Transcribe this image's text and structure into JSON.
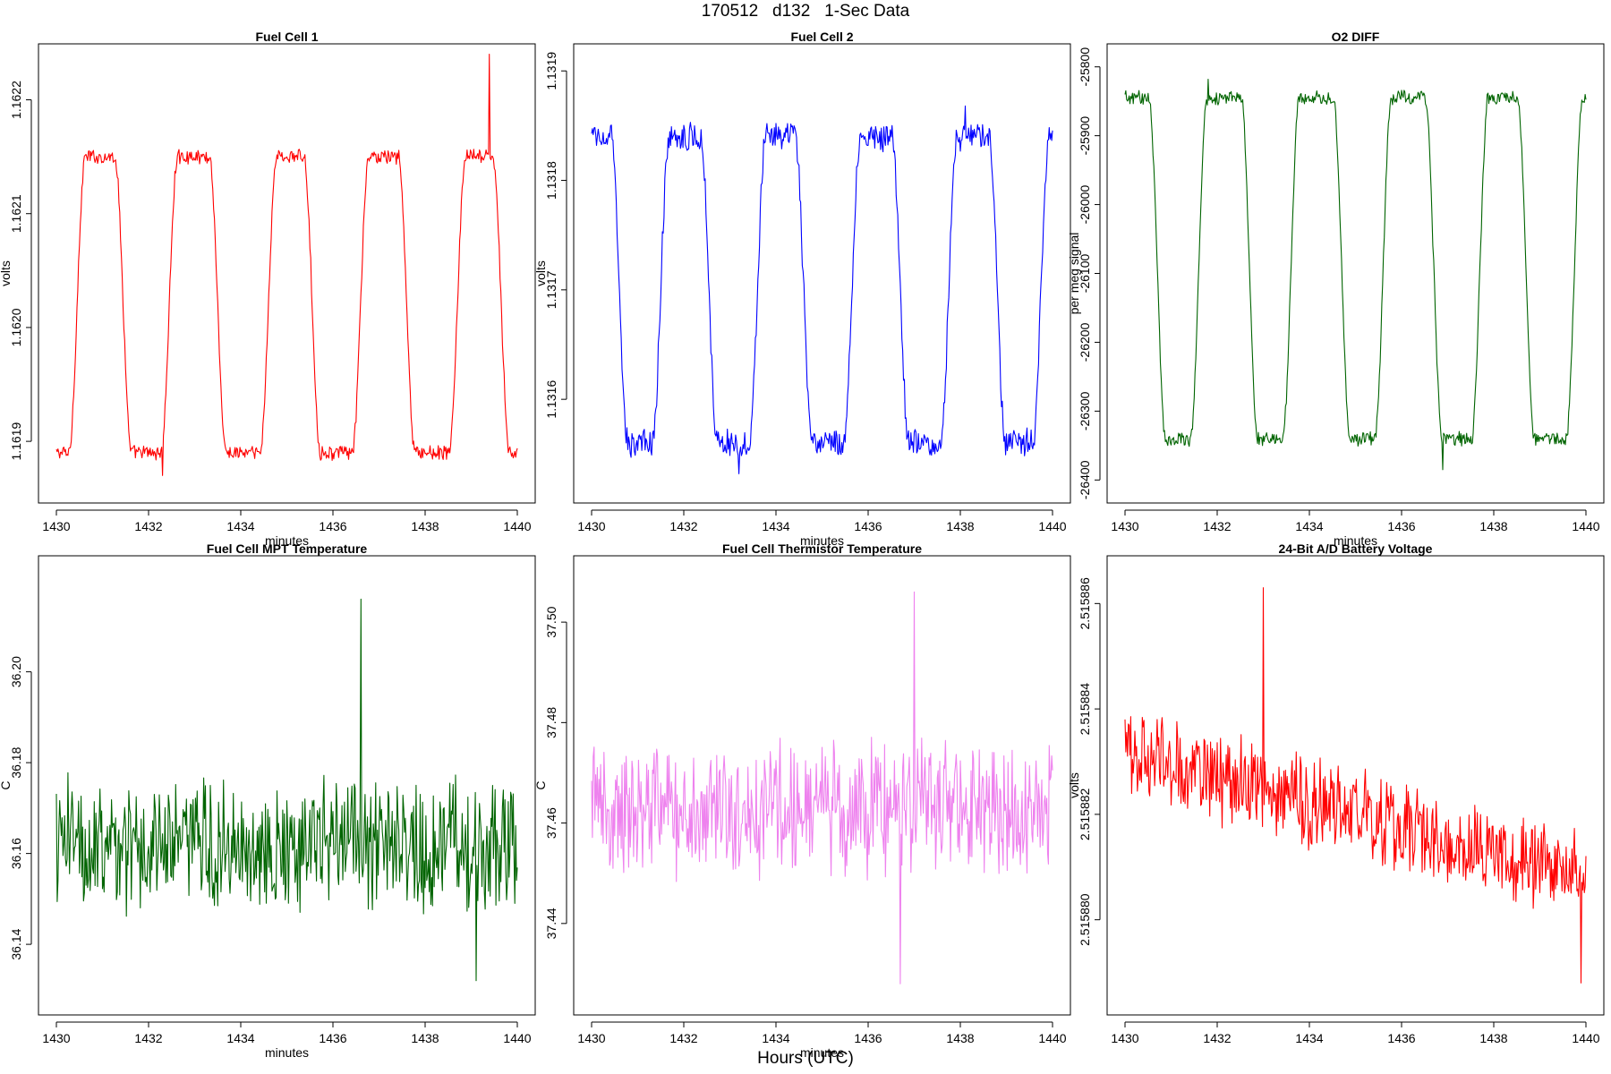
{
  "figure": {
    "title": "170512   d132   1-Sec Data",
    "footer_xlabel": "Hours (UTC)"
  },
  "chart_data": [
    {
      "id": "fc1",
      "type": "line",
      "title": "Fuel Cell 1",
      "xlabel": "minutes",
      "ylabel": "volts",
      "color": "#ff0000",
      "xlim": [
        1430,
        1440
      ],
      "ylim": [
        1.16186,
        1.162235
      ],
      "xticks": [
        "1430",
        "1432",
        "1434",
        "1436",
        "1438",
        "1440"
      ],
      "yticks": [
        "1.1619",
        "1.1620",
        "1.1621",
        "1.1622"
      ],
      "series": {
        "pattern": "square_wave",
        "start_state": "low",
        "transitions": [
          1430.45,
          1431.45,
          1432.45,
          1433.5,
          1434.6,
          1435.55,
          1436.6,
          1437.6,
          1438.7,
          1439.65
        ],
        "high_level": 1.16215,
        "low_level": 1.16189,
        "noise": 5.5e-06,
        "peak": {
          "x": 1439.4,
          "y": 1.16224
        },
        "trough": {
          "x": 1432.3,
          "y": 1.16187
        }
      }
    },
    {
      "id": "fc2",
      "type": "line",
      "title": "Fuel Cell 2",
      "xlabel": "minutes",
      "ylabel": "volts",
      "color": "#0000ff",
      "xlim": [
        1430,
        1440
      ],
      "ylim": [
        1.13152,
        1.13191
      ],
      "xticks": [
        "1430",
        "1432",
        "1434",
        "1436",
        "1438",
        "1440"
      ],
      "yticks": [
        "1.1316",
        "1.1317",
        "1.1318",
        "1.1319"
      ],
      "series": {
        "pattern": "square_wave",
        "start_state": "high",
        "transitions": [
          1430.6,
          1431.5,
          1432.55,
          1433.6,
          1434.6,
          1435.65,
          1436.7,
          1437.75,
          1438.8,
          1439.75
        ],
        "high_level": 1.13184,
        "low_level": 1.13156,
        "noise": 1.1e-05,
        "peak": {
          "x": 1438.1,
          "y": 1.131868
        },
        "trough": {
          "x": 1433.2,
          "y": 1.131532
        }
      }
    },
    {
      "id": "o2",
      "type": "line",
      "title": "O2 DIFF",
      "xlabel": "minutes",
      "ylabel": "per meg signal",
      "color": "#006400",
      "xlim": [
        1430,
        1440
      ],
      "ylim": [
        -26410,
        -25790
      ],
      "xticks": [
        "1430",
        "1432",
        "1434",
        "1436",
        "1438",
        "1440"
      ],
      "yticks": [
        "-26400",
        "-26300",
        "-26200",
        "-26100",
        "-26000",
        "-25900",
        "-25800"
      ],
      "series": {
        "pattern": "square_wave",
        "start_state": "high",
        "transitions": [
          1430.7,
          1431.6,
          1432.7,
          1433.6,
          1434.7,
          1435.6,
          1436.7,
          1437.7,
          1438.7,
          1439.75
        ],
        "high_level": -25845,
        "low_level": -26340,
        "noise": 9,
        "peak": {
          "x": 1431.8,
          "y": -25818
        },
        "trough": {
          "x": 1436.9,
          "y": -26385
        }
      }
    },
    {
      "id": "mpt",
      "type": "line",
      "title": "Fuel Cell MPT Temperature",
      "xlabel": "minutes",
      "ylabel": "C",
      "color": "#006400",
      "xlim": [
        1430,
        1440
      ],
      "ylim": [
        36.128,
        36.222
      ],
      "xticks": [
        "1430",
        "1432",
        "1434",
        "1436",
        "1438",
        "1440"
      ],
      "yticks": [
        "36.14",
        "36.16",
        "36.18",
        "36.20"
      ],
      "series": {
        "pattern": "noise",
        "mean": 36.162,
        "amplitude": 0.012,
        "peak": {
          "x": 1436.6,
          "y": 36.216
        },
        "trough": {
          "x": 1439.1,
          "y": 36.132
        }
      }
    },
    {
      "id": "therm",
      "type": "line",
      "title": "Fuel Cell Thermistor Temperature",
      "xlabel": "minutes",
      "ylabel": "C",
      "color": "#ee82ee",
      "xlim": [
        1430,
        1440
      ],
      "ylim": [
        37.425,
        37.51
      ],
      "xticks": [
        "1430",
        "1432",
        "1434",
        "1436",
        "1438",
        "1440"
      ],
      "yticks": [
        "37.44",
        "37.46",
        "37.48",
        "37.50"
      ],
      "series": {
        "pattern": "noise",
        "mean": 37.463,
        "amplitude": 0.011,
        "peak": {
          "x": 1437.0,
          "y": 37.506
        },
        "trough": {
          "x": 1436.7,
          "y": 37.428
        }
      }
    },
    {
      "id": "batt",
      "type": "line",
      "title": "24-Bit A/D Battery Voltage",
      "xlabel": "",
      "ylabel": "volts",
      "color": "#ff0000",
      "xlim": [
        1430,
        1440
      ],
      "ylim": [
        2.5158785,
        2.5158866
      ],
      "xticks": [
        "1430",
        "1432",
        "1434",
        "1436",
        "1438",
        "1440"
      ],
      "yticks": [
        "2.515880",
        "2.515882",
        "2.515884",
        "2.515886"
      ],
      "series": {
        "pattern": "noise_trend",
        "start_mean": 2.5158832,
        "end_mean": 2.5158808,
        "amplitude": 7e-07,
        "peak": {
          "x": 1433.0,
          "y": 2.5158863
        },
        "trough": {
          "x": 1439.9,
          "y": 2.5158788
        }
      }
    }
  ]
}
